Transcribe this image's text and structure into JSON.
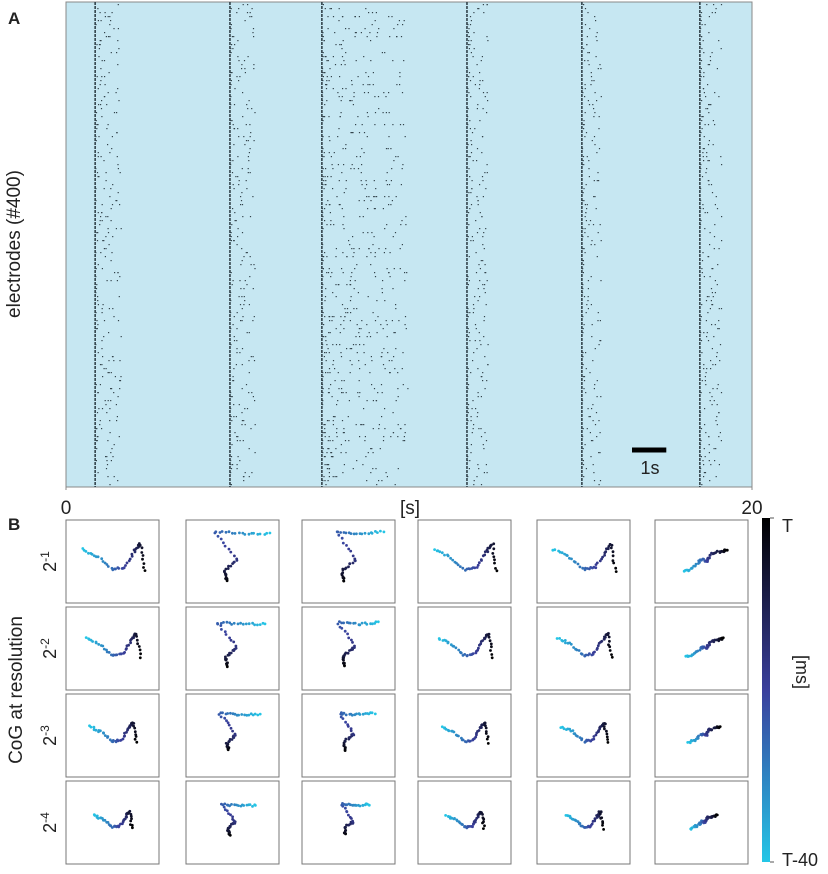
{
  "chart_data": [
    {
      "type": "raster",
      "panel": "A",
      "ylabel": "electrodes (#400)",
      "xlabel": "[s]",
      "xlim": [
        0,
        20
      ],
      "xticks": [
        0,
        20
      ],
      "background": "#c6e7f2",
      "color": "#33444c",
      "bursts": [
        {
          "start": 0.85,
          "end": 1.6
        },
        {
          "start": 4.78,
          "end": 5.5
        },
        {
          "start": 7.46,
          "end": 9.95
        },
        {
          "start": 11.69,
          "end": 12.3
        },
        {
          "start": 15.04,
          "end": 15.6
        },
        {
          "start": 18.48,
          "end": 19.1
        }
      ],
      "scale_bar": {
        "value": 1,
        "label": "1s"
      }
    },
    {
      "type": "trajectory-grid",
      "panel": "B",
      "ylabel": "CoG at resolution",
      "rows": [
        {
          "base": "2",
          "exponent": "-1"
        },
        {
          "base": "2",
          "exponent": "-2"
        },
        {
          "base": "2",
          "exponent": "-3"
        },
        {
          "base": "2",
          "exponent": "-4"
        }
      ],
      "colorbar": {
        "label": "[ms]",
        "lim": [
          -40,
          0
        ],
        "ticks": [
          {
            "value": 0,
            "label": "T"
          },
          {
            "value": -40,
            "label": "T-40"
          }
        ],
        "colors": [
          "#000000",
          "#3a3f9c",
          "#24c6e6"
        ]
      }
    }
  ]
}
